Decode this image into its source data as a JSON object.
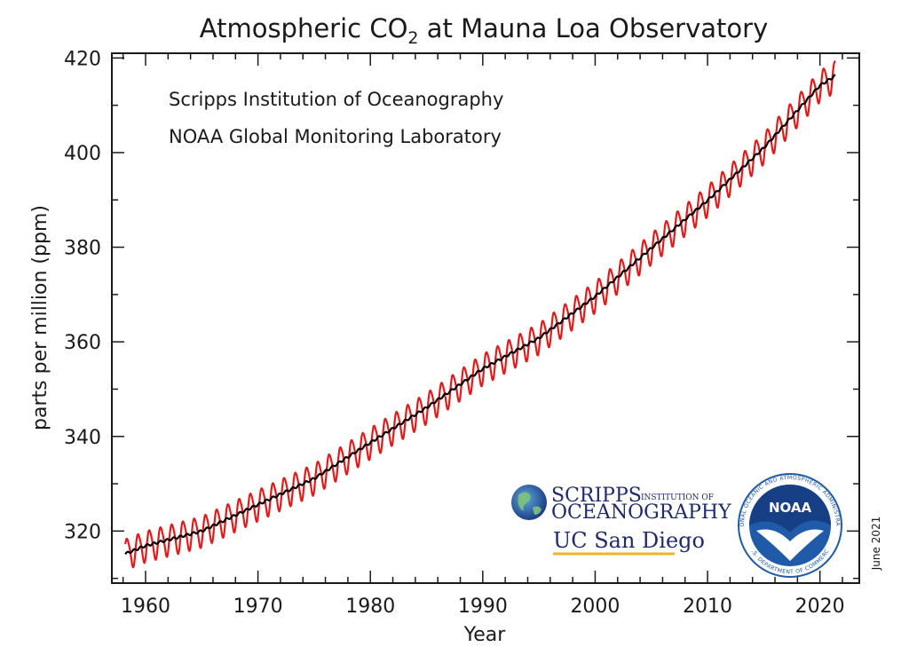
{
  "chart_data": {
    "type": "line",
    "title_main": "Atmospheric CO",
    "title_sub": "2",
    "title_rest": " at Mauna Loa Observatory",
    "xlabel": "Year",
    "ylabel": "parts per million (ppm)",
    "xlim": [
      1957,
      2023.5
    ],
    "ylim": [
      309,
      421
    ],
    "x_ticks": [
      "1960",
      "1970",
      "1980",
      "1990",
      "2000",
      "2010",
      "2020"
    ],
    "y_ticks": [
      "320",
      "340",
      "360",
      "380",
      "400",
      "420"
    ],
    "annotations": [
      "Scripps Institution of Oceanography",
      "NOAA Global Monitoring Laboratory"
    ],
    "date_stamp": "June 2021",
    "series": [
      {
        "color": "#e41a1a",
        "description": "monthly average (seasonal cycle)",
        "seasonal_amplitude_ppm": 3.2
      },
      {
        "color": "#000000",
        "description": "seasonally corrected trend",
        "x": [
          1958.2,
          1960,
          1965,
          1970,
          1975,
          1980,
          1985,
          1990,
          1995,
          2000,
          2005,
          2010,
          2015,
          2020,
          2021.4
        ],
        "values": [
          315.2,
          316.9,
          320.0,
          325.6,
          331.1,
          338.7,
          346.1,
          354.3,
          360.8,
          369.6,
          379.8,
          389.9,
          401.0,
          414.2,
          416.3
        ]
      }
    ]
  },
  "logos": {
    "scripps_line1": "SCRIPPS",
    "scripps_line1_small": "INSTITUTION OF",
    "scripps_line2": "OCEANOGRAPHY",
    "ucsd": "UC San Diego",
    "noaa_word": "NOAA",
    "noaa_ring_top": "NATIONAL OCEANIC AND ATMOSPHERIC ADMINISTRATION",
    "noaa_ring_bottom": "U.S. DEPARTMENT OF COMMERCE"
  }
}
